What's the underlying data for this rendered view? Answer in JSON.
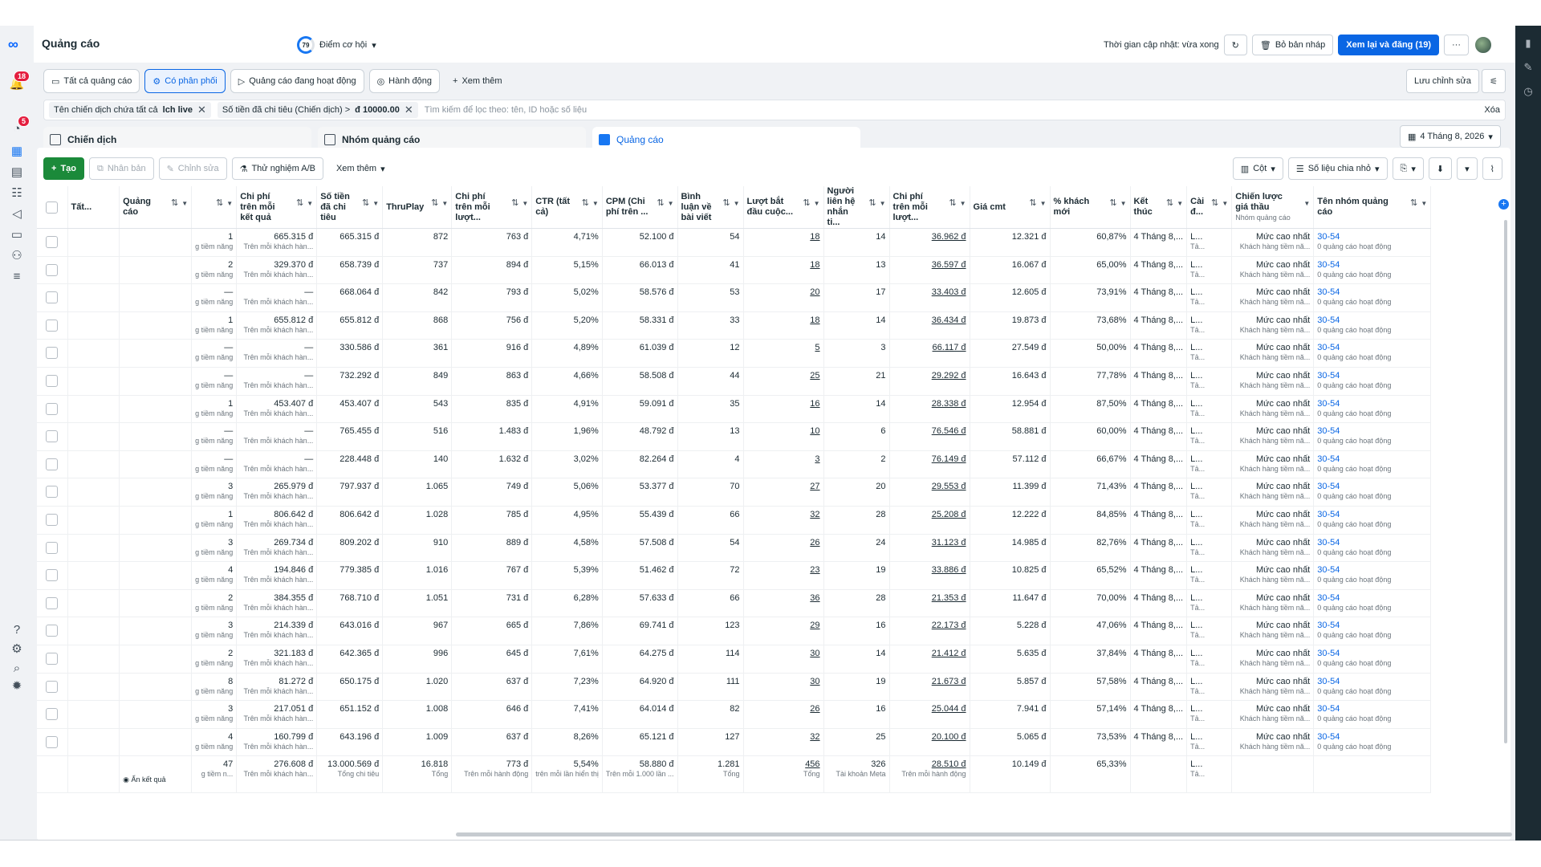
{
  "app": {
    "title": "Quảng cáo",
    "notifications": "18",
    "messages": "5"
  },
  "opportunity": {
    "score": "79",
    "label": "Điểm cơ hội"
  },
  "header": {
    "update": "Thời gian cập nhật: vừa xong",
    "discard": "Bỏ bản nháp",
    "publish": "Xem lại và đăng (19)",
    "more": "···"
  },
  "tabs": [
    {
      "label": "Tất cả quảng cáo",
      "icon": "folder-icon"
    },
    {
      "label": "Có phân phối",
      "icon": "delivery-icon",
      "selected": true
    },
    {
      "label": "Quảng cáo đang hoạt động",
      "icon": "play-icon"
    },
    {
      "label": "Hành động",
      "icon": "action-icon"
    },
    {
      "label": "Xem thêm",
      "icon": "plus-icon"
    }
  ],
  "save_edits": "Lưu chỉnh sửa",
  "filter": {
    "chip1_label": "Tên chiến dịch chứa tất cả",
    "chip1_value": "lch live",
    "chip2_label": "Số tiền đã chi tiêu (Chiến dịch) >",
    "chip2_value": "đ 10000.00",
    "placeholder": "Tìm kiếm để lọc theo: tên, ID hoặc số liệu",
    "clear": "Xóa"
  },
  "levels": {
    "campaign": "Chiến dịch",
    "adset": "Nhóm quảng cáo",
    "ad": "Quảng cáo"
  },
  "date": "4 Tháng 8, 2026",
  "toolbar": {
    "create": "Tạo",
    "duplicate": "Nhân bản",
    "edit": "Chỉnh sửa",
    "abtest": "Thử nghiệm A/B",
    "more": "Xem thêm",
    "columns": "Cột",
    "breakdown": "Số liệu chia nhỏ"
  },
  "columns": [
    {
      "label": "Tất..."
    },
    {
      "label": "Quảng cáo"
    },
    {
      "label": ""
    },
    {
      "label": "Chi phí trên mỗi kết quả"
    },
    {
      "label": "Số tiền đã chi tiêu"
    },
    {
      "label": "ThruPlay"
    },
    {
      "label": "Chi phí trên mỗi lượt..."
    },
    {
      "label": "CTR (tất cả)"
    },
    {
      "label": "CPM (Chi phí trên ..."
    },
    {
      "label": "Bình luận về bài viết"
    },
    {
      "label": "Lượt bắt đầu cuộc..."
    },
    {
      "label": "Người liên hệ nhắn ti..."
    },
    {
      "label": "Chi phí trên mỗi lượt..."
    },
    {
      "label": "Giá cmt"
    },
    {
      "label": "% khách mới"
    },
    {
      "label": "Kết thúc"
    },
    {
      "label": "Cài đ..."
    },
    {
      "label": "Chiến lược giá thầu",
      "sub": "Nhóm quảng cáo"
    },
    {
      "label": "Tên nhóm quảng cáo"
    }
  ],
  "row_sub": {
    "res": "g tiềm năng",
    "cpr": "Trên mỗi khách hàn...",
    "bid_sub": "Khách hàng tiềm nă...",
    "adset_sub": "0 quảng cáo hoạt động",
    "set": "L...",
    "set_sub": "Tả...",
    "end": "4 Tháng 8,...",
    "bid": "Mức cao nhất",
    "adset": "30-54"
  },
  "rows": [
    [
      "1",
      "665.315 đ",
      "665.315 đ",
      "872",
      "763 đ",
      "4,71%",
      "52.100 đ",
      "54",
      "18",
      "14",
      "36.962 đ",
      "12.321 đ",
      "60,87%"
    ],
    [
      "2",
      "329.370 đ",
      "658.739 đ",
      "737",
      "894 đ",
      "5,15%",
      "66.013 đ",
      "41",
      "18",
      "13",
      "36.597 đ",
      "16.067 đ",
      "65,00%"
    ],
    [
      "—",
      "—",
      "668.064 đ",
      "842",
      "793 đ",
      "5,02%",
      "58.576 đ",
      "53",
      "20",
      "17",
      "33.403 đ",
      "12.605 đ",
      "73,91%"
    ],
    [
      "1",
      "655.812 đ",
      "655.812 đ",
      "868",
      "756 đ",
      "5,20%",
      "58.331 đ",
      "33",
      "18",
      "14",
      "36.434 đ",
      "19.873 đ",
      "73,68%"
    ],
    [
      "—",
      "—",
      "330.586 đ",
      "361",
      "916 đ",
      "4,89%",
      "61.039 đ",
      "12",
      "5",
      "3",
      "66.117 đ",
      "27.549 đ",
      "50,00%"
    ],
    [
      "—",
      "—",
      "732.292 đ",
      "849",
      "863 đ",
      "4,66%",
      "58.508 đ",
      "44",
      "25",
      "21",
      "29.292 đ",
      "16.643 đ",
      "77,78%"
    ],
    [
      "1",
      "453.407 đ",
      "453.407 đ",
      "543",
      "835 đ",
      "4,91%",
      "59.091 đ",
      "35",
      "16",
      "14",
      "28.338 đ",
      "12.954 đ",
      "87,50%"
    ],
    [
      "—",
      "—",
      "765.455 đ",
      "516",
      "1.483 đ",
      "1,96%",
      "48.792 đ",
      "13",
      "10",
      "6",
      "76.546 đ",
      "58.881 đ",
      "60,00%"
    ],
    [
      "—",
      "—",
      "228.448 đ",
      "140",
      "1.632 đ",
      "3,02%",
      "82.264 đ",
      "4",
      "3",
      "2",
      "76.149 đ",
      "57.112 đ",
      "66,67%"
    ],
    [
      "3",
      "265.979 đ",
      "797.937 đ",
      "1.065",
      "749 đ",
      "5,06%",
      "53.377 đ",
      "70",
      "27",
      "20",
      "29.553 đ",
      "11.399 đ",
      "71,43%"
    ],
    [
      "1",
      "806.642 đ",
      "806.642 đ",
      "1.028",
      "785 đ",
      "4,95%",
      "55.439 đ",
      "66",
      "32",
      "28",
      "25.208 đ",
      "12.222 đ",
      "84,85%"
    ],
    [
      "3",
      "269.734 đ",
      "809.202 đ",
      "910",
      "889 đ",
      "4,58%",
      "57.508 đ",
      "54",
      "26",
      "24",
      "31.123 đ",
      "14.985 đ",
      "82,76%"
    ],
    [
      "4",
      "194.846 đ",
      "779.385 đ",
      "1.016",
      "767 đ",
      "5,39%",
      "51.462 đ",
      "72",
      "23",
      "19",
      "33.886 đ",
      "10.825 đ",
      "65,52%"
    ],
    [
      "2",
      "384.355 đ",
      "768.710 đ",
      "1.051",
      "731 đ",
      "6,28%",
      "57.633 đ",
      "66",
      "36",
      "28",
      "21.353 đ",
      "11.647 đ",
      "70,00%"
    ],
    [
      "3",
      "214.339 đ",
      "643.016 đ",
      "967",
      "665 đ",
      "7,86%",
      "69.741 đ",
      "123",
      "29",
      "16",
      "22.173 đ",
      "5.228 đ",
      "47,06%"
    ],
    [
      "2",
      "321.183 đ",
      "642.365 đ",
      "996",
      "645 đ",
      "7,61%",
      "64.275 đ",
      "114",
      "30",
      "14",
      "21.412 đ",
      "5.635 đ",
      "37,84%"
    ],
    [
      "8",
      "81.272 đ",
      "650.175 đ",
      "1.020",
      "637 đ",
      "7,23%",
      "64.920 đ",
      "111",
      "30",
      "19",
      "21.673 đ",
      "5.857 đ",
      "57,58%"
    ],
    [
      "3",
      "217.051 đ",
      "651.152 đ",
      "1.008",
      "646 đ",
      "7,41%",
      "64.014 đ",
      "82",
      "26",
      "16",
      "25.044 đ",
      "7.941 đ",
      "57,14%"
    ],
    [
      "4",
      "160.799 đ",
      "643.196 đ",
      "1.009",
      "637 đ",
      "8,26%",
      "65.121 đ",
      "127",
      "32",
      "25",
      "20.100 đ",
      "5.065 đ",
      "73,53%"
    ]
  ],
  "total": {
    "hide": "Ẩn kết quả",
    "res": "47",
    "res_sub": "g tiềm n...",
    "cpr": "276.608 đ",
    "cpr_sub": "Trên mỗi khách hàn...",
    "spend": "13.000.569 đ",
    "spend_sub": "Tổng chi tiêu",
    "thru": "16.818",
    "thru_sub": "Tổng",
    "cpt": "773 đ",
    "cpt_sub": "Trên mỗi hành động",
    "ctr": "5,54%",
    "ctr_sub": "trên mỗi lần hiển thị",
    "cpm": "58.880 đ",
    "cpm_sub": "Trên mỗi 1.000 lần ...",
    "cmt": "1.281",
    "cmt_sub": "Tổng",
    "conv": "456",
    "conv_sub": "Tổng",
    "contacts": "326",
    "contacts_sub": "Tài khoản Meta",
    "cpl": "28.510 đ",
    "cpl_sub": "Trên mỗi hành động",
    "price": "10.149 đ",
    "new": "65,33%",
    "set": "L...",
    "set_sub": "Tả..."
  }
}
